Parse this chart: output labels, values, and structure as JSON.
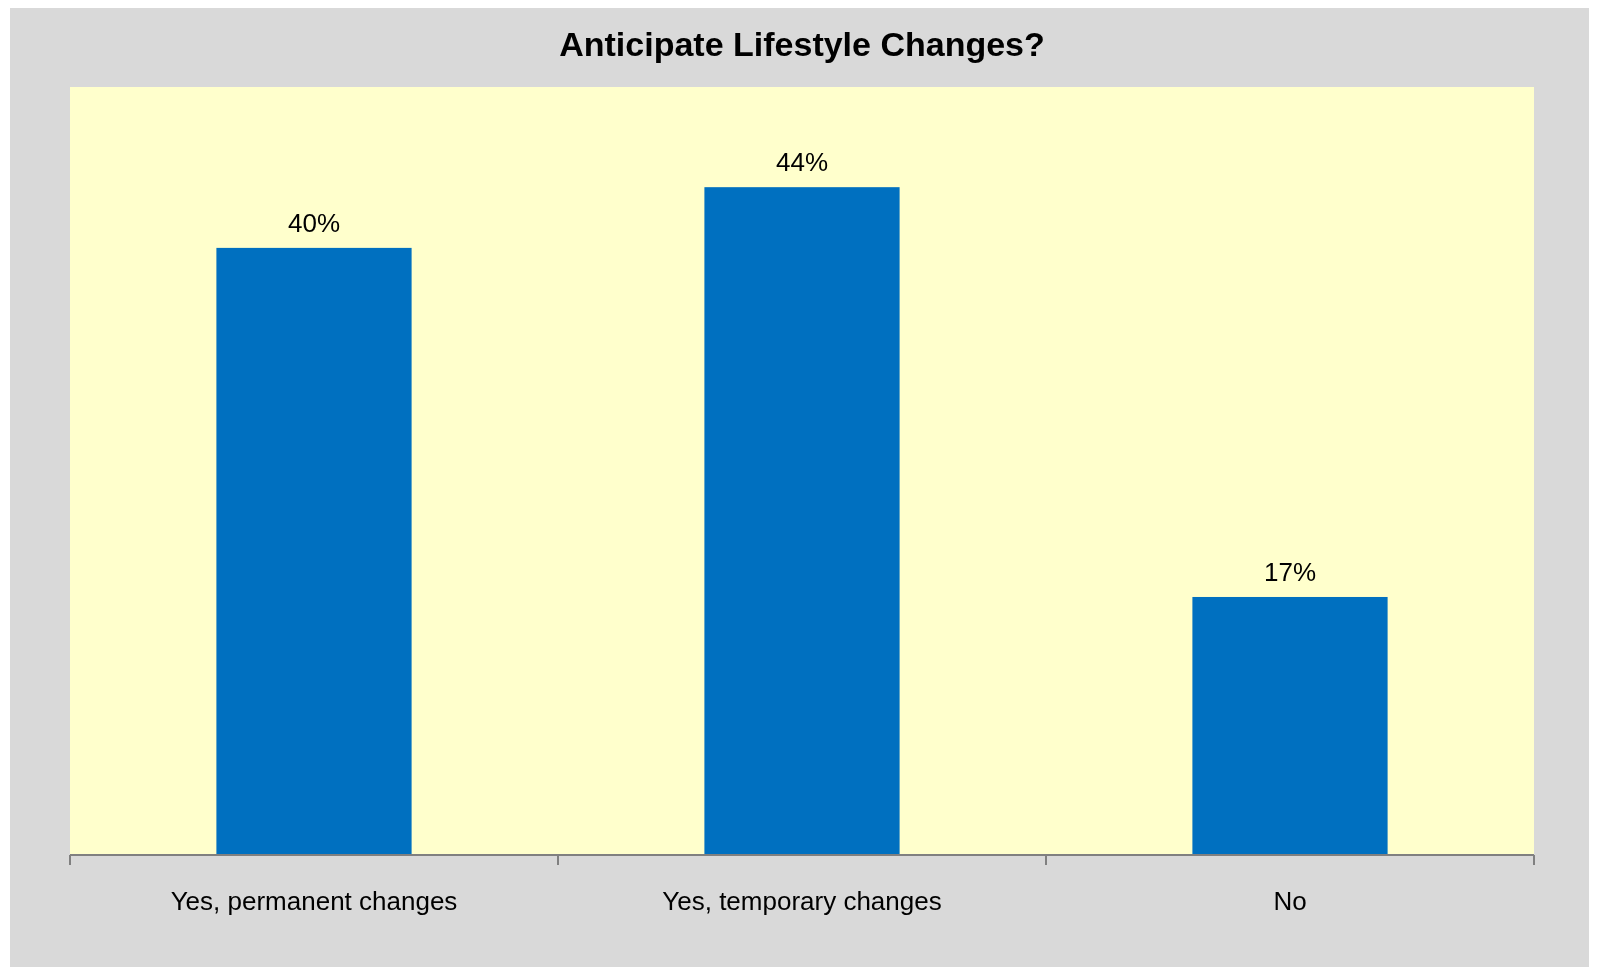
{
  "chart_data": {
    "type": "bar",
    "title": "Anticipate Lifestyle Changes?",
    "categories": [
      "Yes, permanent changes",
      "Yes, temporary changes",
      "No"
    ],
    "values": [
      40,
      44,
      17
    ],
    "value_labels": [
      "40%",
      "44%",
      "17%"
    ],
    "color": "#0070c0"
  }
}
